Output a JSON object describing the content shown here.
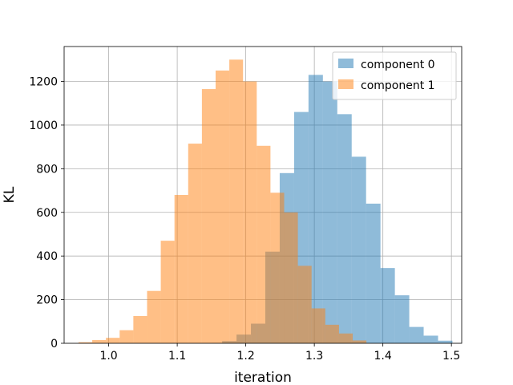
{
  "chart_data": {
    "type": "histogram",
    "xlabel": "iteration",
    "ylabel": "KL",
    "xlim": [
      0.935,
      1.515
    ],
    "ylim": [
      0,
      1360
    ],
    "xticks": [
      "1.0",
      "1.1",
      "1.2",
      "1.3",
      "1.4",
      "1.5"
    ],
    "xtick_values": [
      1.0,
      1.1,
      1.2,
      1.3,
      1.4,
      1.5
    ],
    "yticks": [
      "0",
      "200",
      "400",
      "600",
      "800",
      "1000",
      "1200"
    ],
    "ytick_values": [
      0,
      200,
      400,
      600,
      800,
      1000,
      1200
    ],
    "grid": true,
    "legend_position": "upper right",
    "series": [
      {
        "name": "component 0",
        "color": "#1f77b4",
        "alpha": 0.5,
        "bin_edges": [
          1.152,
          1.1655,
          1.1865,
          1.2075,
          1.2285,
          1.2495,
          1.2705,
          1.2915,
          1.3125,
          1.3335,
          1.3545,
          1.3755,
          1.3965,
          1.4175,
          1.4385,
          1.4595,
          1.4805,
          1.5015
        ],
        "counts": [
          1,
          10,
          40,
          90,
          420,
          780,
          1060,
          1230,
          1200,
          1050,
          855,
          640,
          345,
          220,
          75,
          35,
          12
        ]
      },
      {
        "name": "component 1",
        "color": "#ff7f0e",
        "alpha": 0.5,
        "bin_edges": [
          0.956,
          0.976,
          0.996,
          1.016,
          1.036,
          1.056,
          1.076,
          1.096,
          1.116,
          1.136,
          1.156,
          1.176,
          1.196,
          1.216,
          1.236,
          1.256,
          1.276,
          1.296,
          1.316,
          1.336,
          1.356,
          1.376
        ],
        "counts": [
          5,
          15,
          25,
          60,
          125,
          240,
          470,
          680,
          915,
          1165,
          1250,
          1300,
          1200,
          905,
          690,
          600,
          355,
          160,
          85,
          45,
          13
        ]
      }
    ]
  }
}
